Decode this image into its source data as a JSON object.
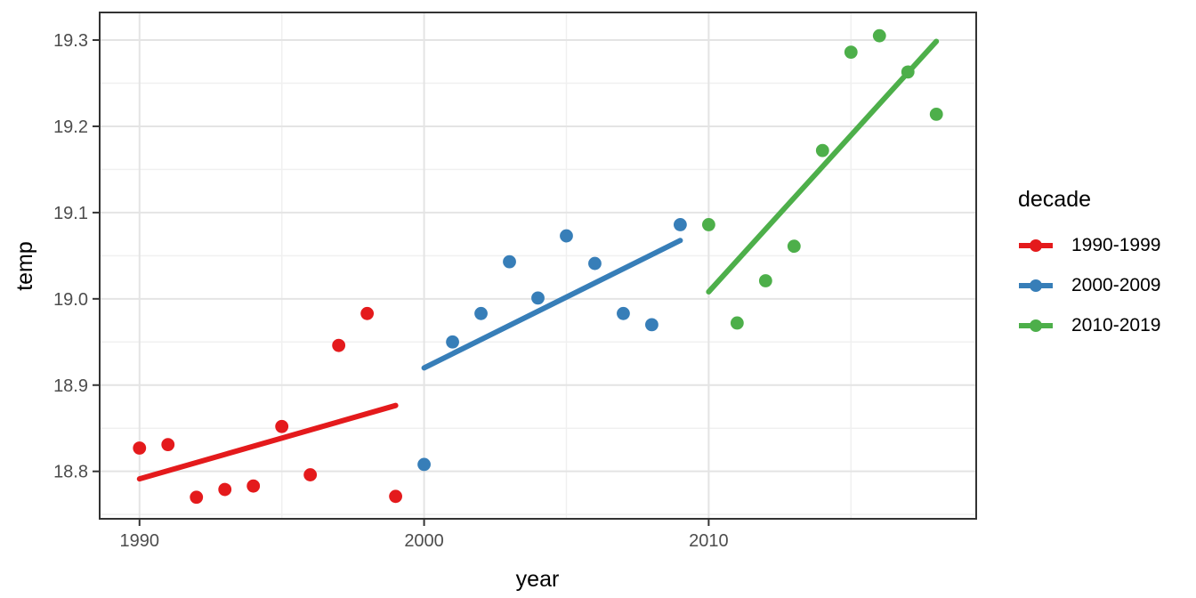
{
  "chart_data": {
    "type": "scatter",
    "title": "",
    "xlabel": "year",
    "ylabel": "temp",
    "legend_title": "decade",
    "legend_position": "right",
    "grid": true,
    "xlim": [
      1988.6,
      2019.4
    ],
    "ylim": [
      18.745,
      19.332
    ],
    "x_ticks": {
      "values": [
        1990,
        2000,
        2010
      ],
      "labels": [
        "1990",
        "2000",
        "2010"
      ],
      "minor": [
        1995,
        2005,
        2015
      ]
    },
    "y_ticks": {
      "values": [
        18.8,
        18.9,
        19.0,
        19.1,
        19.2,
        19.3
      ],
      "labels": [
        "18.8",
        "18.9",
        "19.0",
        "19.1",
        "19.2",
        "19.3"
      ],
      "minor": [
        18.75,
        18.85,
        18.95,
        19.05,
        19.15,
        19.25
      ]
    },
    "series": [
      {
        "name": "1990-1999",
        "color": "#E41A1C",
        "trend": "linear",
        "x": [
          1990,
          1991,
          1992,
          1993,
          1994,
          1995,
          1996,
          1997,
          1998,
          1999
        ],
        "y": [
          18.827,
          18.831,
          18.77,
          18.779,
          18.783,
          18.852,
          18.796,
          18.946,
          18.983,
          18.771
        ]
      },
      {
        "name": "2000-2009",
        "color": "#377EB8",
        "trend": "linear",
        "x": [
          2000,
          2001,
          2002,
          2003,
          2004,
          2005,
          2006,
          2007,
          2008,
          2009
        ],
        "y": [
          18.808,
          18.95,
          18.983,
          19.043,
          19.001,
          19.073,
          19.041,
          18.983,
          18.97,
          19.086
        ]
      },
      {
        "name": "2010-2019",
        "color": "#4DAF4A",
        "trend": "linear",
        "x": [
          2010,
          2011,
          2012,
          2013,
          2014,
          2015,
          2016,
          2017,
          2018
        ],
        "y": [
          19.086,
          18.972,
          19.021,
          19.061,
          19.172,
          19.286,
          19.305,
          19.263,
          19.214
        ]
      }
    ]
  }
}
